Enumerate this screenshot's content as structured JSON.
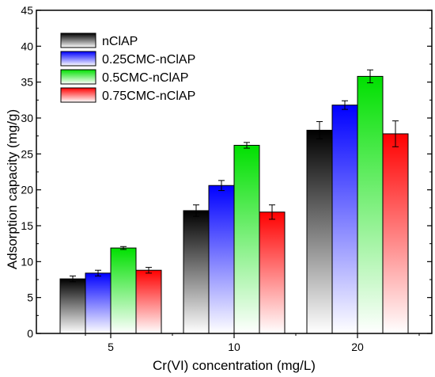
{
  "chart_data": {
    "type": "bar",
    "xlabel": "Cr(VI) concentration (mg/L)",
    "ylabel": "Adsorption capacity (mg/g)",
    "ylim": [
      0,
      45
    ],
    "yticks": [
      0,
      5,
      10,
      15,
      20,
      25,
      30,
      35,
      40,
      45
    ],
    "categories": [
      "5",
      "10",
      "20"
    ],
    "grid": false,
    "legend_position": "top-left",
    "series": [
      {
        "name": "nClAP",
        "color": "#000000",
        "values": [
          7.6,
          17.1,
          28.3
        ],
        "errors": [
          0.4,
          0.8,
          1.2
        ]
      },
      {
        "name": "0.25CMC-nClAP",
        "color": "#0000ff",
        "values": [
          8.4,
          20.6,
          31.8
        ],
        "errors": [
          0.4,
          0.7,
          0.6
        ]
      },
      {
        "name": "0.5CMC-nClAP",
        "color": "#00e000",
        "values": [
          11.9,
          26.2,
          35.8
        ],
        "errors": [
          0.2,
          0.4,
          0.9
        ]
      },
      {
        "name": "0.75CMC-nClAP",
        "color": "#ff0000",
        "values": [
          8.8,
          16.9,
          27.8
        ],
        "errors": [
          0.4,
          1.0,
          1.8
        ]
      }
    ]
  }
}
